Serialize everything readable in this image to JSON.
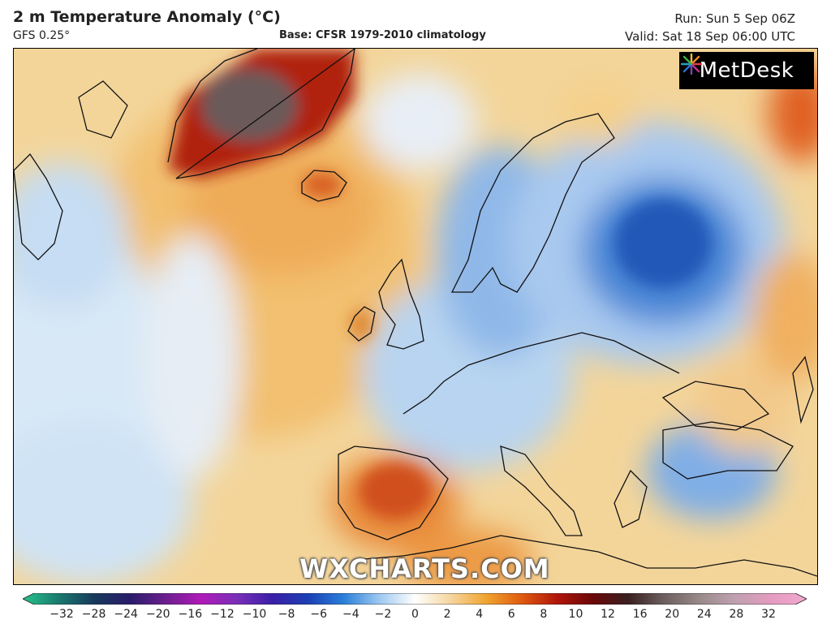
{
  "header": {
    "title": "2 m Temperature Anomaly (°C)",
    "model": "GFS 0.25°",
    "base": "Base: CFSR 1979-2010 climatology",
    "run": "Run: Sun 5 Sep 06Z",
    "valid": "Valid: Sat 18 Sep 06:00 UTC"
  },
  "branding": {
    "logo_text": "MetDesk",
    "logo_icon": "metdesk-starburst-icon",
    "watermark": "WXCHARTS.COM"
  },
  "legend": {
    "ticks": [
      {
        "value": -32,
        "label": "−32"
      },
      {
        "value": -28,
        "label": "−28"
      },
      {
        "value": -24,
        "label": "−24"
      },
      {
        "value": -20,
        "label": "−20"
      },
      {
        "value": -16,
        "label": "−16"
      },
      {
        "value": -12,
        "label": "−12"
      },
      {
        "value": -10,
        "label": "−10"
      },
      {
        "value": -8,
        "label": "−8"
      },
      {
        "value": -6,
        "label": "−6"
      },
      {
        "value": -4,
        "label": "−4"
      },
      {
        "value": -2,
        "label": "−2"
      },
      {
        "value": 0,
        "label": "0"
      },
      {
        "value": 2,
        "label": "2"
      },
      {
        "value": 4,
        "label": "4"
      },
      {
        "value": 6,
        "label": "6"
      },
      {
        "value": 8,
        "label": "8"
      },
      {
        "value": 10,
        "label": "10"
      },
      {
        "value": 12,
        "label": "12"
      },
      {
        "value": 16,
        "label": "16"
      },
      {
        "value": 20,
        "label": "20"
      },
      {
        "value": 24,
        "label": "24"
      },
      {
        "value": 28,
        "label": "28"
      },
      {
        "value": 32,
        "label": "32"
      }
    ],
    "colors": [
      "#27c48b",
      "#1b7a6f",
      "#173a5c",
      "#2a1c6a",
      "#6a1f8e",
      "#b01ab8",
      "#7a2fb8",
      "#3a1fa8",
      "#1c3fb5",
      "#2a7fd8",
      "#9cc8f0",
      "#ffffff",
      "#f5d6a0",
      "#f0a530",
      "#e05a10",
      "#b0150a",
      "#6a0808",
      "#3a2020",
      "#6e6060",
      "#9a8a8a",
      "#c0a0b0",
      "#e49cc0",
      "#f4a8cf"
    ]
  }
}
